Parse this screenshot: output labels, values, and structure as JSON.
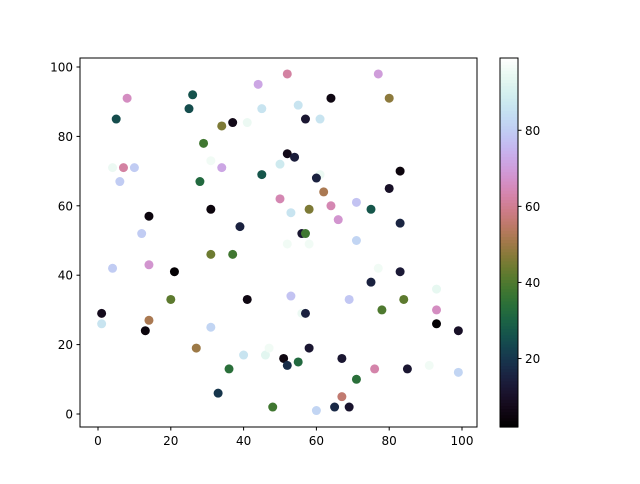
{
  "chart_data": {
    "type": "scatter",
    "title": "",
    "xlabel": "",
    "ylabel": "",
    "xlim": [
      -5,
      104
    ],
    "ylim": [
      -4,
      103
    ],
    "x_ticks": [
      "0",
      "20",
      "40",
      "60",
      "80",
      "100"
    ],
    "y_ticks": [
      "0",
      "20",
      "40",
      "60",
      "80",
      "100"
    ],
    "grid": false,
    "colormap": "cubehelix",
    "colorbar": {
      "range": [
        2,
        99
      ],
      "ticks": [
        "20",
        "40",
        "60",
        "80"
      ],
      "position": "right"
    },
    "points": [
      [
        1,
        29,
        8
      ],
      [
        1,
        26,
        86
      ],
      [
        4,
        71,
        95
      ],
      [
        4,
        42,
        80
      ],
      [
        5,
        85,
        25
      ],
      [
        6,
        67,
        80
      ],
      [
        7,
        71,
        62
      ],
      [
        8,
        91,
        66
      ],
      [
        10,
        71,
        80
      ],
      [
        12,
        52,
        80
      ],
      [
        13,
        24,
        5
      ],
      [
        14,
        57,
        5
      ],
      [
        14,
        43,
        68
      ],
      [
        14,
        27,
        52
      ],
      [
        20,
        33,
        42
      ],
      [
        21,
        41,
        3
      ],
      [
        25,
        88,
        25
      ],
      [
        26,
        92,
        26
      ],
      [
        27,
        19,
        50
      ],
      [
        28,
        67,
        32
      ],
      [
        29,
        78,
        38
      ],
      [
        31,
        73,
        96
      ],
      [
        31,
        59,
        5
      ],
      [
        31,
        46,
        44
      ],
      [
        31,
        25,
        82
      ],
      [
        33,
        6,
        20
      ],
      [
        34,
        83,
        46
      ],
      [
        34,
        71,
        72
      ],
      [
        36,
        13,
        34
      ],
      [
        37,
        84,
        7
      ],
      [
        37,
        46,
        38
      ],
      [
        39,
        54,
        15
      ],
      [
        40,
        17,
        86
      ],
      [
        41,
        84,
        95
      ],
      [
        41,
        33,
        6
      ],
      [
        44,
        95,
        72
      ],
      [
        45,
        88,
        86
      ],
      [
        45,
        69,
        27
      ],
      [
        46,
        17,
        93
      ],
      [
        47,
        19,
        96
      ],
      [
        48,
        2,
        38
      ],
      [
        50,
        72,
        88
      ],
      [
        50,
        62,
        64
      ],
      [
        51,
        16,
        6
      ],
      [
        52,
        98,
        62
      ],
      [
        52,
        75,
        7
      ],
      [
        52,
        49,
        96
      ],
      [
        52,
        14,
        18
      ],
      [
        53,
        58,
        86
      ],
      [
        53,
        34,
        78
      ],
      [
        54,
        74,
        14
      ],
      [
        55,
        89,
        86
      ],
      [
        55,
        15,
        32
      ],
      [
        56,
        52,
        12
      ],
      [
        56,
        29,
        95
      ],
      [
        57,
        29,
        15
      ],
      [
        57,
        85,
        12
      ],
      [
        57,
        52,
        38
      ],
      [
        58,
        59,
        46
      ],
      [
        58,
        49,
        96
      ],
      [
        58,
        19,
        12
      ],
      [
        60,
        1,
        82
      ],
      [
        61,
        69,
        95
      ],
      [
        60,
        68,
        15
      ],
      [
        61,
        85,
        86
      ],
      [
        62,
        64,
        52
      ],
      [
        64,
        91,
        6
      ],
      [
        64,
        60,
        64
      ],
      [
        65,
        2,
        17
      ],
      [
        66,
        56,
        68
      ],
      [
        67,
        16,
        12
      ],
      [
        67,
        5,
        56
      ],
      [
        69,
        33,
        79
      ],
      [
        69,
        2,
        11
      ],
      [
        71,
        61,
        78
      ],
      [
        71,
        50,
        82
      ],
      [
        71,
        10,
        34
      ],
      [
        75,
        59,
        27
      ],
      [
        75,
        38,
        15
      ],
      [
        76,
        13,
        63
      ],
      [
        77,
        98,
        70
      ],
      [
        77,
        42,
        96
      ],
      [
        78,
        30,
        40
      ],
      [
        80,
        91,
        48
      ],
      [
        80,
        65,
        10
      ],
      [
        83,
        70,
        5
      ],
      [
        83,
        55,
        16
      ],
      [
        83,
        41,
        13
      ],
      [
        84,
        33,
        42
      ],
      [
        85,
        13,
        12
      ],
      [
        91,
        14,
        96
      ],
      [
        93,
        36,
        94
      ],
      [
        93,
        30,
        66
      ],
      [
        93,
        26,
        3
      ],
      [
        99,
        24,
        10
      ],
      [
        99,
        12,
        82
      ]
    ]
  }
}
